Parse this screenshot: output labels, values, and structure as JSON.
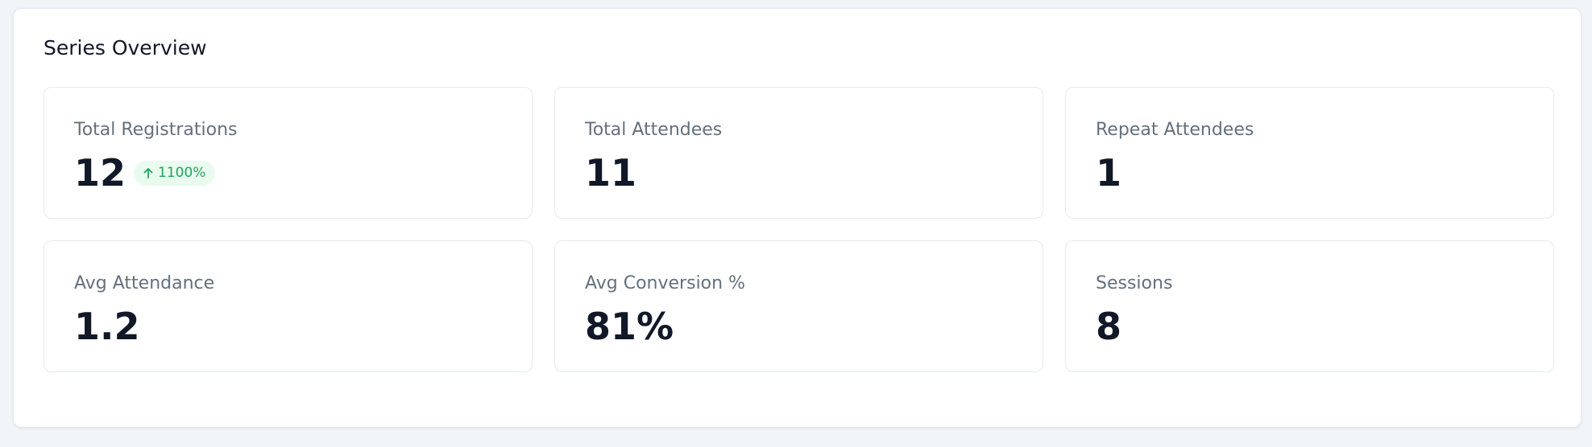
{
  "header": {
    "title": "Series Overview"
  },
  "metrics": [
    {
      "label": "Total Registrations",
      "value": "12",
      "badge": "1100%"
    },
    {
      "label": "Total Attendees",
      "value": "11"
    },
    {
      "label": "Repeat Attendees",
      "value": "1"
    },
    {
      "label": "Avg Attendance",
      "value": "1.2"
    },
    {
      "label": "Avg Conversion %",
      "value": "81%"
    },
    {
      "label": "Sessions",
      "value": "8"
    }
  ]
}
